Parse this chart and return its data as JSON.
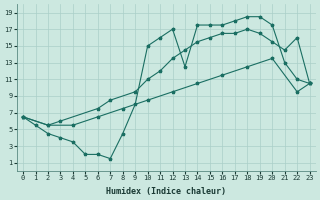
{
  "xlabel": "Humidex (Indice chaleur)",
  "bg_color": "#cce8e0",
  "grid_color": "#aacfc8",
  "line_color": "#1a6e62",
  "xlim": [
    -0.5,
    23.5
  ],
  "ylim": [
    0,
    20
  ],
  "xticks": [
    0,
    1,
    2,
    3,
    4,
    5,
    6,
    7,
    8,
    9,
    10,
    11,
    12,
    13,
    14,
    15,
    16,
    17,
    18,
    19,
    20,
    21,
    22,
    23
  ],
  "yticks": [
    1,
    3,
    5,
    7,
    9,
    11,
    13,
    15,
    17,
    19
  ],
  "line1_x": [
    0,
    1,
    2,
    3,
    4,
    5,
    6,
    7,
    8,
    9,
    10,
    11,
    12,
    13,
    14,
    15,
    16,
    17,
    18,
    19,
    20,
    21,
    22,
    23
  ],
  "line1_y": [
    6.5,
    5.5,
    4.5,
    4.0,
    3.5,
    2.0,
    2.0,
    1.5,
    4.5,
    8.0,
    15.0,
    16.0,
    17.0,
    12.5,
    17.5,
    17.5,
    17.5,
    18.0,
    18.5,
    18.5,
    17.5,
    13.0,
    11.0,
    10.5
  ],
  "line2_x": [
    0,
    2,
    3,
    6,
    7,
    9,
    10,
    11,
    12,
    13,
    14,
    15,
    16,
    17,
    18,
    19,
    20,
    21,
    22,
    23
  ],
  "line2_y": [
    6.5,
    5.5,
    6.0,
    7.5,
    8.5,
    9.5,
    11.0,
    12.0,
    13.5,
    14.5,
    15.5,
    16.0,
    16.5,
    16.5,
    17.0,
    16.5,
    15.5,
    14.5,
    16.0,
    10.5
  ],
  "line3_x": [
    0,
    2,
    4,
    6,
    8,
    10,
    12,
    14,
    16,
    18,
    20,
    22,
    23
  ],
  "line3_y": [
    6.5,
    5.5,
    5.5,
    6.5,
    7.5,
    8.5,
    9.5,
    10.5,
    11.5,
    12.5,
    13.5,
    9.5,
    10.5
  ]
}
